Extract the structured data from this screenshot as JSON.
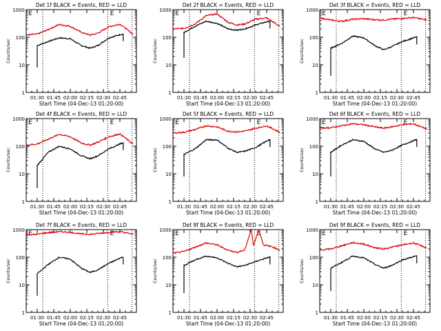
{
  "time_axis": {
    "xlabel": "Start Time (04-Dec-13 01:20:00)",
    "ylabel": "Counts/sec",
    "x_tick_labels": [
      "01:30",
      "01:45",
      "02:00",
      "02:15",
      "02:30",
      "02:45"
    ],
    "x_tick_minutes": [
      10,
      25,
      40,
      55,
      70,
      85
    ],
    "x_range_minutes": [
      0,
      100
    ],
    "y_tick_labels": [
      "1",
      "10",
      "100",
      "1000"
    ],
    "y_range": [
      1,
      1000
    ],
    "y_scale": "log",
    "markers_minutes": [
      15,
      74,
      96
    ],
    "marker_labels": [
      "E",
      "E"
    ],
    "marker_label_minutes": [
      2,
      76
    ]
  },
  "colors": {
    "events": "#000000",
    "lld": "#e00000"
  },
  "chart_data": [
    {
      "type": "line",
      "title": "Det 1f BLACK = Events, RED = LLD",
      "series": [
        {
          "color": "black",
          "start": 10,
          "end": 88,
          "start_drop": 8,
          "jump": 50,
          "points": [
            [
              10,
              50
            ],
            [
              20,
              70
            ],
            [
              30,
              95
            ],
            [
              40,
              88
            ],
            [
              50,
              50
            ],
            [
              58,
              40
            ],
            [
              65,
              50
            ],
            [
              75,
              95
            ],
            [
              87,
              130
            ]
          ]
        },
        {
          "color": "red",
          "start": 0,
          "end": 97,
          "points": [
            [
              0,
              120
            ],
            [
              10,
              130
            ],
            [
              20,
              190
            ],
            [
              30,
              290
            ],
            [
              40,
              250
            ],
            [
              50,
              150
            ],
            [
              58,
              120
            ],
            [
              65,
              140
            ],
            [
              75,
              240
            ],
            [
              85,
              300
            ],
            [
              97,
              130
            ]
          ]
        }
      ]
    },
    {
      "type": "line",
      "title": "Det 2f BLACK = Events, RED = LLD",
      "series": [
        {
          "color": "black",
          "start": 10,
          "end": 88,
          "start_drop": 18,
          "jump": 150,
          "points": [
            [
              10,
              150
            ],
            [
              20,
              250
            ],
            [
              30,
              380
            ],
            [
              40,
              320
            ],
            [
              50,
              200
            ],
            [
              58,
              180
            ],
            [
              65,
              200
            ],
            [
              75,
              280
            ],
            [
              87,
              380
            ]
          ]
        },
        {
          "color": "red",
          "start": 0,
          "end": 97,
          "points": [
            [
              0,
              200
            ],
            [
              10,
              210
            ],
            [
              20,
              300
            ],
            [
              30,
              600
            ],
            [
              40,
              700
            ],
            [
              50,
              350
            ],
            [
              58,
              280
            ],
            [
              65,
              300
            ],
            [
              75,
              450
            ],
            [
              85,
              500
            ],
            [
              97,
              250
            ]
          ]
        }
      ]
    },
    {
      "type": "line",
      "title": "Det 3f BLACK = Events, RED = LLD",
      "series": [
        {
          "color": "black",
          "start": 10,
          "end": 88,
          "start_drop": 4,
          "jump": 40,
          "points": [
            [
              10,
              40
            ],
            [
              20,
              60
            ],
            [
              30,
              110
            ],
            [
              40,
              95
            ],
            [
              50,
              50
            ],
            [
              58,
              35
            ],
            [
              65,
              45
            ],
            [
              75,
              70
            ],
            [
              87,
              100
            ]
          ]
        },
        {
          "color": "red",
          "start": 0,
          "end": 97,
          "points": [
            [
              0,
              500
            ],
            [
              10,
              420
            ],
            [
              20,
              380
            ],
            [
              30,
              450
            ],
            [
              40,
              470
            ],
            [
              50,
              430
            ],
            [
              58,
              420
            ],
            [
              65,
              450
            ],
            [
              75,
              480
            ],
            [
              85,
              520
            ],
            [
              97,
              420
            ]
          ]
        }
      ]
    },
    {
      "type": "line",
      "title": "Det 4f BLACK = Events, RED = LLD",
      "series": [
        {
          "color": "black",
          "start": 10,
          "end": 88,
          "start_drop": 3,
          "jump": 20,
          "points": [
            [
              10,
              20
            ],
            [
              20,
              60
            ],
            [
              30,
              100
            ],
            [
              40,
              80
            ],
            [
              50,
              45
            ],
            [
              58,
              35
            ],
            [
              65,
              45
            ],
            [
              75,
              80
            ],
            [
              87,
              130
            ]
          ]
        },
        {
          "color": "red",
          "start": 0,
          "end": 97,
          "points": [
            [
              0,
              110
            ],
            [
              10,
              120
            ],
            [
              20,
              180
            ],
            [
              30,
              270
            ],
            [
              40,
              220
            ],
            [
              50,
              130
            ],
            [
              58,
              110
            ],
            [
              65,
              140
            ],
            [
              75,
              220
            ],
            [
              85,
              280
            ],
            [
              97,
              120
            ]
          ]
        }
      ]
    },
    {
      "type": "line",
      "title": "Det 5f BLACK = Events, RED = LLD",
      "series": [
        {
          "color": "black",
          "start": 10,
          "end": 88,
          "start_drop": 8,
          "jump": 50,
          "points": [
            [
              10,
              50
            ],
            [
              20,
              80
            ],
            [
              30,
              170
            ],
            [
              40,
              170
            ],
            [
              50,
              85
            ],
            [
              58,
              60
            ],
            [
              65,
              65
            ],
            [
              75,
              90
            ],
            [
              87,
              170
            ]
          ]
        },
        {
          "color": "red",
          "start": 0,
          "end": 97,
          "points": [
            [
              0,
              300
            ],
            [
              10,
              320
            ],
            [
              20,
              400
            ],
            [
              30,
              550
            ],
            [
              40,
              500
            ],
            [
              50,
              350
            ],
            [
              58,
              330
            ],
            [
              65,
              350
            ],
            [
              75,
              450
            ],
            [
              85,
              550
            ],
            [
              97,
              320
            ]
          ]
        }
      ]
    },
    {
      "type": "line",
      "title": "Det 6f BLACK = Events, RED = LLD",
      "series": [
        {
          "color": "black",
          "start": 10,
          "end": 88,
          "start_drop": 8,
          "jump": 60,
          "points": [
            [
              10,
              60
            ],
            [
              20,
              110
            ],
            [
              30,
              170
            ],
            [
              40,
              150
            ],
            [
              50,
              80
            ],
            [
              58,
              60
            ],
            [
              65,
              70
            ],
            [
              75,
              110
            ],
            [
              87,
              170
            ]
          ]
        },
        {
          "color": "red",
          "start": 0,
          "end": 97,
          "points": [
            [
              0,
              450
            ],
            [
              10,
              470
            ],
            [
              20,
              550
            ],
            [
              30,
              650
            ],
            [
              40,
              600
            ],
            [
              50,
              500
            ],
            [
              58,
              450
            ],
            [
              65,
              500
            ],
            [
              75,
              600
            ],
            [
              85,
              650
            ],
            [
              97,
              420
            ]
          ]
        }
      ]
    },
    {
      "type": "line",
      "title": "Det 7f BLACK = Events, RED = LLD",
      "series": [
        {
          "color": "black",
          "start": 10,
          "end": 88,
          "start_drop": 4,
          "jump": 25,
          "points": [
            [
              10,
              25
            ],
            [
              20,
              55
            ],
            [
              30,
              100
            ],
            [
              40,
              85
            ],
            [
              50,
              40
            ],
            [
              58,
              28
            ],
            [
              65,
              35
            ],
            [
              75,
              60
            ],
            [
              87,
              100
            ]
          ]
        },
        {
          "color": "red",
          "start": 0,
          "end": 97,
          "points": [
            [
              0,
              650
            ],
            [
              10,
              680
            ],
            [
              20,
              780
            ],
            [
              30,
              850
            ],
            [
              40,
              800
            ],
            [
              50,
              700
            ],
            [
              58,
              680
            ],
            [
              65,
              720
            ],
            [
              75,
              800
            ],
            [
              85,
              850
            ],
            [
              97,
              680
            ]
          ]
        }
      ]
    },
    {
      "type": "line",
      "title": "Det 8f BLACK = Events, RED = LLD",
      "series": [
        {
          "color": "black",
          "start": 10,
          "end": 88,
          "start_drop": 5,
          "jump": 50,
          "points": [
            [
              10,
              50
            ],
            [
              20,
              80
            ],
            [
              30,
              110
            ],
            [
              40,
              95
            ],
            [
              50,
              60
            ],
            [
              58,
              45
            ],
            [
              65,
              50
            ],
            [
              75,
              70
            ],
            [
              87,
              100
            ]
          ]
        },
        {
          "color": "red",
          "start": 0,
          "end": 97,
          "points": [
            [
              0,
              140
            ],
            [
              10,
              160
            ],
            [
              20,
              230
            ],
            [
              30,
              330
            ],
            [
              40,
              280
            ],
            [
              50,
              180
            ],
            [
              58,
              150
            ],
            [
              65,
              180
            ],
            [
              71,
              1000
            ],
            [
              73,
              270
            ],
            [
              78,
              1000
            ],
            [
              82,
              280
            ],
            [
              90,
              240
            ],
            [
              97,
              180
            ]
          ]
        }
      ]
    },
    {
      "type": "line",
      "title": "Det 9f BLACK = Events, RED = LLD",
      "series": [
        {
          "color": "black",
          "start": 10,
          "end": 88,
          "start_drop": 6,
          "jump": 40,
          "points": [
            [
              10,
              40
            ],
            [
              20,
              65
            ],
            [
              30,
              110
            ],
            [
              40,
              95
            ],
            [
              50,
              55
            ],
            [
              58,
              40
            ],
            [
              65,
              50
            ],
            [
              75,
              80
            ],
            [
              87,
              110
            ]
          ]
        },
        {
          "color": "red",
          "start": 0,
          "end": 97,
          "points": [
            [
              0,
              180
            ],
            [
              10,
              200
            ],
            [
              20,
              260
            ],
            [
              30,
              340
            ],
            [
              40,
              300
            ],
            [
              50,
              220
            ],
            [
              58,
              200
            ],
            [
              65,
              230
            ],
            [
              75,
              280
            ],
            [
              85,
              330
            ],
            [
              97,
              220
            ]
          ]
        }
      ]
    }
  ]
}
